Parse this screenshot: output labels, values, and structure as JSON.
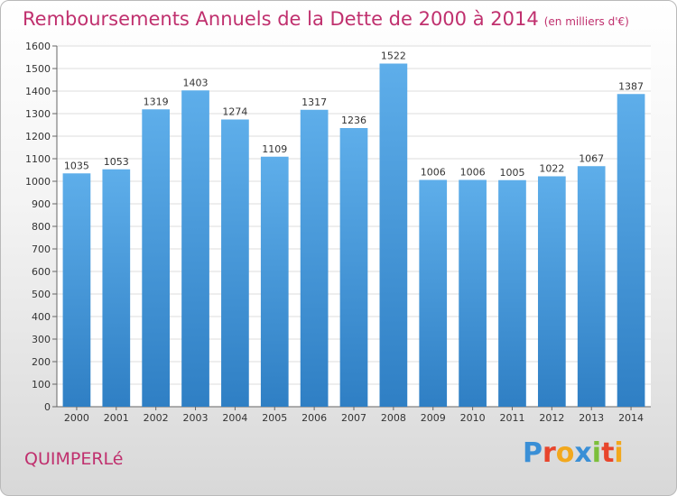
{
  "chart_data": {
    "type": "bar",
    "title": "Remboursements Annuels de la Dette de 2000 à 2014",
    "unit_note": "(en milliers d'€)",
    "categories": [
      "2000",
      "2001",
      "2002",
      "2003",
      "2004",
      "2005",
      "2006",
      "2007",
      "2008",
      "2009",
      "2010",
      "2011",
      "2012",
      "2013",
      "2014"
    ],
    "values": [
      1035,
      1053,
      1319,
      1403,
      1274,
      1109,
      1317,
      1236,
      1522,
      1006,
      1006,
      1005,
      1022,
      1067,
      1387
    ],
    "yticks": [
      0,
      100,
      200,
      300,
      400,
      500,
      600,
      700,
      800,
      900,
      1000,
      1100,
      1200,
      1300,
      1400,
      1500,
      1600
    ],
    "ylim": [
      0,
      1600
    ],
    "grid": true,
    "bar_color": "#4f9fdc",
    "xlabel": "",
    "ylabel": ""
  },
  "commune": "QUIMPERLé",
  "logo": {
    "letters": [
      "P",
      "r",
      "o",
      "x",
      "i",
      "t",
      "i"
    ],
    "colors": [
      "#3a8fd6",
      "#e8452c",
      "#f2a81d",
      "#3a8fd6",
      "#7cbf3a",
      "#e8452c",
      "#f2a81d"
    ]
  },
  "colors": {
    "title": "#c0306e",
    "grid": "#dddddd"
  }
}
